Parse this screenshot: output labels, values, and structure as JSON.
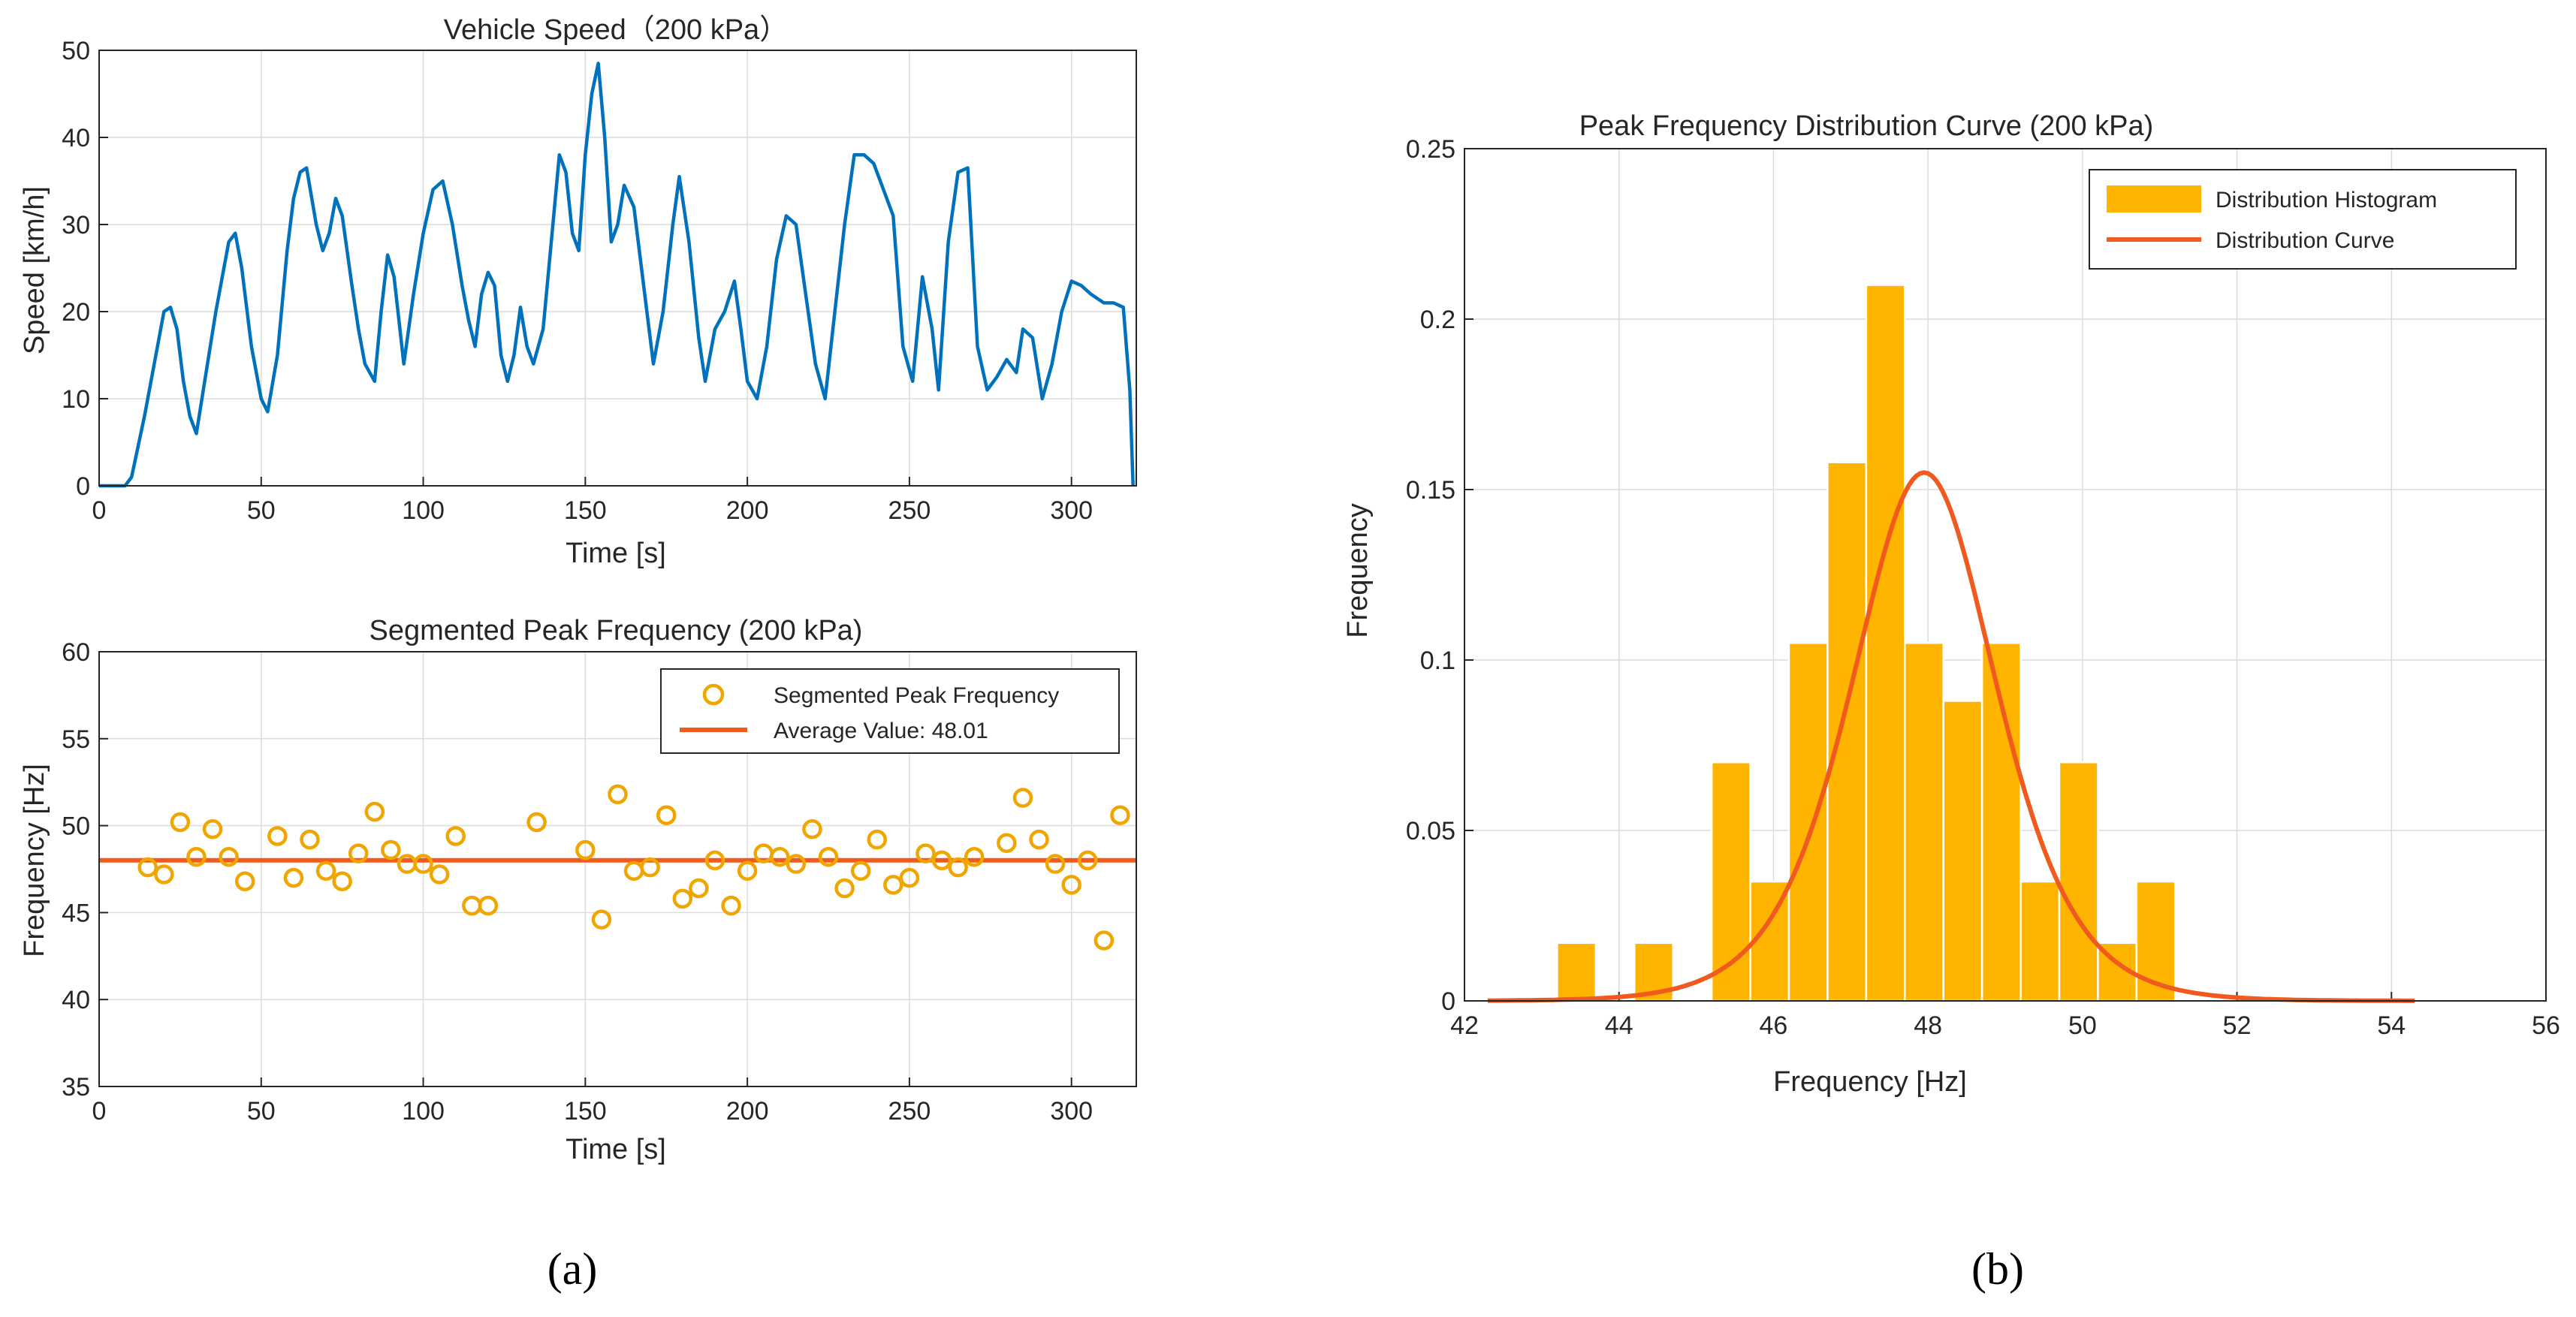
{
  "colors": {
    "speed_line": "#0072BD",
    "marker": "#F0A500",
    "avg_line": "#F05A1E",
    "hist_fill": "#FFB400",
    "curve": "#F05A1E",
    "grid": "#dcdcdc",
    "axis": "#262626"
  },
  "panel_labels": {
    "a": "(a)",
    "b": "(b)"
  },
  "chart_data": [
    {
      "id": "speed",
      "type": "line",
      "title": "Vehicle Speed（200 kPa）",
      "xlabel": "Time [s]",
      "ylabel": "Speed [km/h]",
      "xlim": [
        0,
        320
      ],
      "ylim": [
        0,
        50
      ],
      "xticks": [
        0,
        50,
        100,
        150,
        200,
        250,
        300
      ],
      "yticks": [
        0,
        10,
        20,
        30,
        40,
        50
      ],
      "grid": true,
      "series": [
        {
          "name": "Speed",
          "x": [
            0,
            8,
            10,
            14,
            18,
            20,
            22,
            24,
            26,
            28,
            30,
            33,
            36,
            40,
            42,
            44,
            47,
            50,
            52,
            55,
            58,
            60,
            62,
            64,
            67,
            69,
            71,
            73,
            75,
            78,
            80,
            82,
            85,
            87,
            89,
            91,
            94,
            97,
            100,
            103,
            106,
            109,
            112,
            114,
            116,
            118,
            120,
            122,
            124,
            126,
            128,
            130,
            132,
            134,
            137,
            140,
            142,
            144,
            146,
            148,
            150,
            152,
            154,
            156,
            158,
            160,
            162,
            165,
            168,
            171,
            174,
            177,
            179,
            182,
            185,
            187,
            190,
            193,
            196,
            198,
            200,
            203,
            206,
            209,
            212,
            215,
            218,
            221,
            224,
            227,
            230,
            233,
            236,
            239,
            242,
            245,
            248,
            251,
            254,
            257,
            259,
            262,
            265,
            268,
            271,
            274,
            277,
            280,
            283,
            285,
            288,
            291,
            294,
            297,
            300,
            303,
            306,
            308,
            310,
            313,
            316,
            318,
            319
          ],
          "values": [
            0,
            0,
            1,
            8,
            16,
            20,
            20.5,
            18,
            12,
            8,
            6,
            13,
            20,
            28,
            29,
            25,
            16,
            10,
            8.5,
            15,
            27,
            33,
            36,
            36.5,
            30,
            27,
            29,
            33,
            31,
            23,
            18,
            14,
            12,
            20,
            26.5,
            24,
            14,
            22,
            29,
            34,
            35,
            30,
            23,
            19,
            16,
            22,
            24.5,
            23,
            15,
            12,
            15,
            20.5,
            16,
            14,
            18,
            30,
            38,
            36,
            29,
            27,
            38,
            45,
            48.5,
            40,
            28,
            30,
            34.5,
            32,
            23,
            14,
            20,
            30,
            35.5,
            28,
            17,
            12,
            18,
            20,
            23.5,
            18,
            12,
            10,
            16,
            26,
            31,
            30,
            22,
            14,
            10,
            20,
            30,
            38,
            38,
            37,
            34,
            31,
            16,
            12,
            24,
            18,
            11,
            28,
            36,
            36.5,
            16,
            11,
            12.5,
            14.5,
            13,
            18,
            17,
            10,
            14,
            20,
            23.5,
            23,
            22,
            21.5,
            21,
            21,
            20.5,
            11,
            0
          ]
        }
      ]
    },
    {
      "id": "segmented",
      "type": "scatter",
      "title": "Segmented Peak Frequency (200 kPa)",
      "xlabel": "Time [s]",
      "ylabel": "Frequency [Hz]",
      "xlim": [
        0,
        320
      ],
      "ylim": [
        35,
        60
      ],
      "xticks": [
        0,
        50,
        100,
        150,
        200,
        250,
        300
      ],
      "yticks": [
        35,
        40,
        45,
        50,
        55,
        60
      ],
      "grid": true,
      "legend": {
        "position": "top-right",
        "entries": [
          "Segmented Peak Frequency",
          "Average Value: 48.01"
        ]
      },
      "series": [
        {
          "name": "Segmented Peak Frequency",
          "x": [
            15,
            20,
            25,
            30,
            35,
            40,
            45,
            55,
            60,
            65,
            70,
            75,
            80,
            85,
            90,
            95,
            100,
            105,
            110,
            115,
            120,
            135,
            150,
            155,
            160,
            165,
            170,
            175,
            180,
            185,
            190,
            195,
            200,
            205,
            210,
            215,
            220,
            225,
            230,
            235,
            240,
            245,
            250,
            255,
            260,
            265,
            270,
            280,
            285,
            290,
            295,
            300,
            305,
            310,
            315
          ],
          "values": [
            47.6,
            47.2,
            50.2,
            48.2,
            49.8,
            48.2,
            46.8,
            49.4,
            47.0,
            49.2,
            47.4,
            46.8,
            48.4,
            50.8,
            48.6,
            47.8,
            47.8,
            47.2,
            49.4,
            45.4,
            45.4,
            50.2,
            48.6,
            44.6,
            51.8,
            47.4,
            47.6,
            50.6,
            45.8,
            46.4,
            48.0,
            45.4,
            47.4,
            48.4,
            48.2,
            47.8,
            49.8,
            48.2,
            46.4,
            47.4,
            49.2,
            46.6,
            47.0,
            48.4,
            48.0,
            47.6,
            48.2,
            49.0,
            51.6,
            49.2,
            47.8,
            46.6,
            48.0,
            43.4,
            50.6
          ]
        },
        {
          "name": "Average Value: 48.01",
          "type": "hline",
          "value": 48.01
        }
      ]
    },
    {
      "id": "distribution",
      "type": "bar",
      "title": "Peak Frequency Distribution Curve (200 kPa)",
      "xlabel": "Frequency [Hz]",
      "ylabel": "Frequency",
      "xlim": [
        42,
        56
      ],
      "ylim": [
        0,
        0.25
      ],
      "xticks": [
        42,
        44,
        46,
        48,
        50,
        52,
        54,
        56
      ],
      "yticks": [
        0,
        0.05,
        0.1,
        0.15,
        0.2,
        0.25
      ],
      "ytick_labels": [
        "0",
        "0.05",
        "0.1",
        "0.15",
        "0.2",
        "0.25"
      ],
      "grid": true,
      "legend": {
        "position": "top-right",
        "entries": [
          "Distribution Histogram",
          "Distribution Curve"
        ]
      },
      "series": [
        {
          "name": "Distribution Histogram",
          "bin_edges": [
            42.7,
            43.2,
            43.7,
            44.2,
            44.7,
            45.2,
            45.7,
            46.2,
            46.7,
            47.2,
            47.7,
            48.2,
            48.7,
            49.2,
            49.7,
            50.2,
            50.7,
            51.2,
            51.7
          ],
          "values": [
            0,
            0.017,
            0,
            0.017,
            0,
            0.07,
            0.035,
            0.105,
            0.158,
            0.21,
            0.105,
            0.088,
            0.105,
            0.035,
            0.07,
            0.017,
            0.035,
            0
          ]
        },
        {
          "name": "Distribution Curve",
          "type": "logistic",
          "x_range": [
            42.3,
            54.3
          ],
          "mu": 47.95,
          "s": 0.628,
          "peak": 0.155
        }
      ]
    }
  ]
}
